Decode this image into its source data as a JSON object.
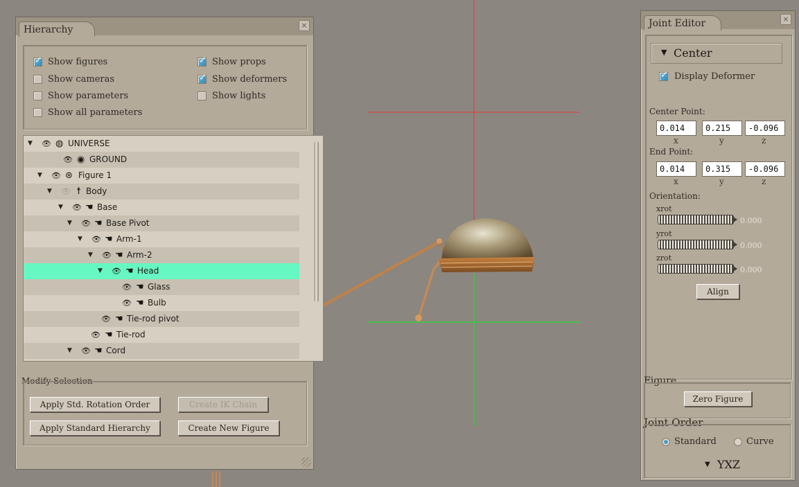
{
  "hierarchy": {
    "title": "Hierarchy",
    "close_glyph": "×",
    "options": [
      {
        "label": "Show figures",
        "checked": true
      },
      {
        "label": "Show cameras",
        "checked": false
      },
      {
        "label": "Show parameters",
        "checked": false
      },
      {
        "label": "Show all parameters",
        "checked": false
      },
      {
        "label": "Show props",
        "checked": true
      },
      {
        "label": "Show deformers",
        "checked": true
      },
      {
        "label": "Show lights",
        "checked": false
      }
    ],
    "tree": [
      {
        "name": "UNIVERSE",
        "icon": "globe-icon",
        "glyph": "🌐",
        "expanded": true
      },
      {
        "name": "GROUND",
        "icon": "ground-icon",
        "glyph": "◉",
        "expanded": null
      },
      {
        "name": "Figure 1",
        "icon": "figure-icon",
        "glyph": "⊛",
        "expanded": true
      },
      {
        "name": "Body",
        "icon": "body-icon",
        "glyph": "☨",
        "expanded": true,
        "eye_dim": true
      },
      {
        "name": "Base",
        "icon": "hand-icon",
        "glyph": "☚",
        "expanded": true
      },
      {
        "name": "Base Pivot",
        "icon": "hand-icon",
        "glyph": "☚",
        "expanded": true
      },
      {
        "name": "Arm-1",
        "icon": "hand-icon",
        "glyph": "☚",
        "expanded": true
      },
      {
        "name": "Arm-2",
        "icon": "hand-icon",
        "glyph": "☚",
        "expanded": true
      },
      {
        "name": "Head",
        "icon": "hand-icon",
        "glyph": "☚",
        "expanded": true,
        "selected": true
      },
      {
        "name": "Glass",
        "icon": "hand-icon",
        "glyph": "☚",
        "expanded": null
      },
      {
        "name": "Bulb",
        "icon": "hand-icon",
        "glyph": "☚",
        "expanded": null
      },
      {
        "name": "Tie-rod pivot",
        "icon": "hand-icon",
        "glyph": "☚",
        "expanded": null
      },
      {
        "name": "Tie-rod",
        "icon": "hand-icon",
        "glyph": "☚",
        "expanded": null
      },
      {
        "name": "Cord",
        "icon": "hand-icon",
        "glyph": "☚",
        "expanded": true
      }
    ],
    "modify_selection": "Modify Selection",
    "buttons": {
      "apply_rotation": "Apply Std. Rotation Order",
      "create_ik": "Create IK Chain",
      "apply_hierarchy": "Apply Standard Hierarchy",
      "create_figure": "Create New Figure"
    }
  },
  "joint_editor": {
    "title": "Joint Editor",
    "close_glyph": "×",
    "mode": "Center",
    "display_deformer": "Display Deformer",
    "display_deformer_checked": true,
    "center_point_label": "Center Point:",
    "center_point": {
      "x": "0.014",
      "y": "0.215",
      "z": "-0.096"
    },
    "end_point_label": "End Point:",
    "end_point": {
      "x": "0.014",
      "y": "0.315",
      "z": "-0.096"
    },
    "axis_labels": {
      "x": "x",
      "y": "y",
      "z": "z"
    },
    "orientation_label": "Orientation:",
    "dials": [
      {
        "label": "xrot",
        "value": "0.000"
      },
      {
        "label": "yrot",
        "value": "0.000"
      },
      {
        "label": "zrot",
        "value": "0.000"
      }
    ],
    "align": "Align",
    "figure_label": "Figure",
    "zero_figure": "Zero Figure",
    "joint_order_label": "Joint Order",
    "standard": "Standard",
    "curve": "Curve",
    "standard_selected": true,
    "order": "YXZ"
  },
  "colors": {
    "viewport_bg": "#8c8680",
    "selected_row": "#66f7c2",
    "red_guide": "#e03b3b",
    "green_guide": "#2fd23a"
  }
}
